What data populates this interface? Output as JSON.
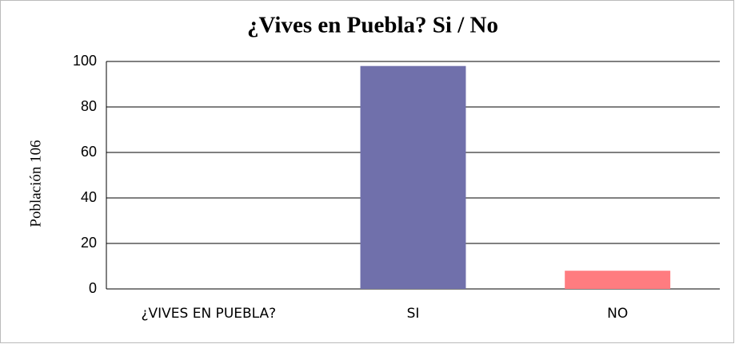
{
  "chart_data": {
    "type": "bar",
    "title": "¿Vives en Puebla? Si / No",
    "ylabel": "Población 106",
    "categories": [
      "¿VIVES EN PUEBLA?",
      "SI",
      "NO"
    ],
    "values": [
      null,
      98,
      8
    ],
    "colors": [
      "#7070ab",
      "#7070ab",
      "#ff7c80"
    ],
    "ylim": [
      0,
      100
    ],
    "yticks": [
      0,
      20,
      40,
      60,
      80,
      100
    ],
    "grid": true
  }
}
